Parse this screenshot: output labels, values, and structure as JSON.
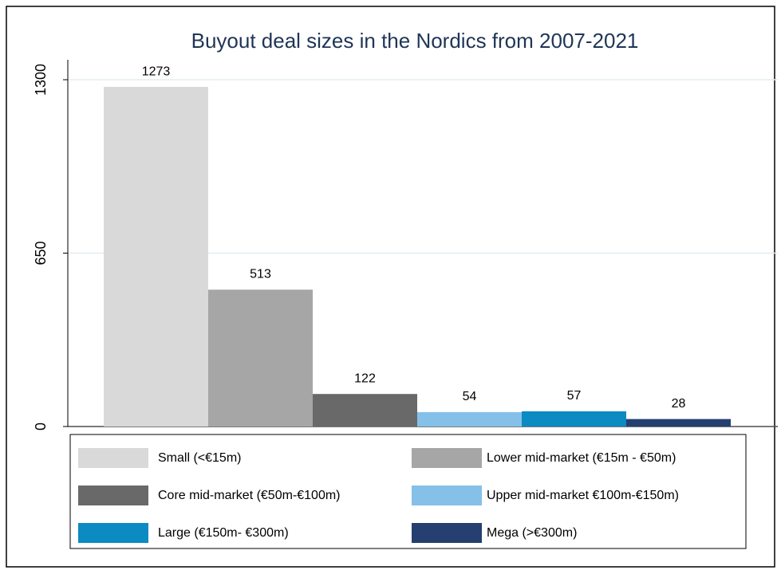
{
  "chart_data": {
    "type": "bar",
    "title": "Buyout deal sizes in the Nordics from 2007-2021",
    "series": [
      {
        "name": "Small (<€15m)",
        "color": "#d9d9d9",
        "values": [
          1273
        ]
      },
      {
        "name": "Lower mid-market (€15m - €50m)",
        "color": "#a6a6a6",
        "values": [
          513
        ]
      },
      {
        "name": "Core mid-market (€50m-€100m)",
        "color": "#696969",
        "values": [
          122
        ]
      },
      {
        "name": "Upper mid-market €100m-€150m)",
        "color": "#85c0e9",
        "values": [
          54
        ]
      },
      {
        "name": "Large (€150m- €300m)",
        "color": "#0b8bc1",
        "values": [
          57
        ]
      },
      {
        "name": "Mega (>€300m)",
        "color": "#243f70",
        "values": [
          28
        ]
      }
    ],
    "ylim": [
      0,
      1300
    ],
    "yticks": [
      0,
      650,
      1300
    ],
    "grid": true,
    "legend": "bottom"
  }
}
